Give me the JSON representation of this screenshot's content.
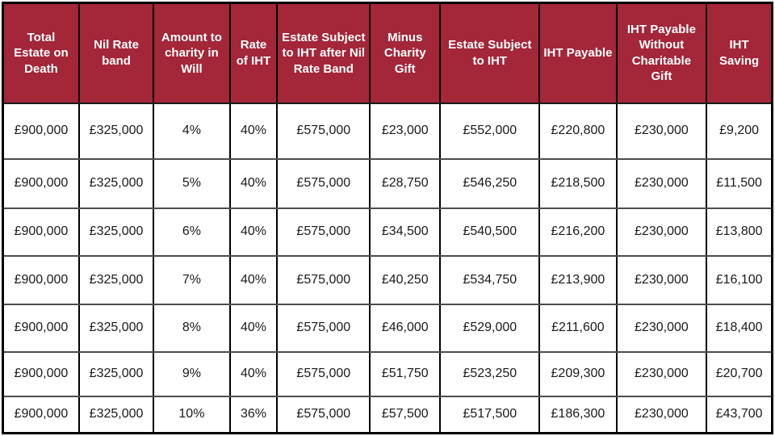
{
  "table": {
    "columns": [
      "Total Estate on Death",
      "Nil Rate band",
      "Amount to charity in Will",
      "Rate of IHT",
      "Estate Subject to IHT after Nil Rate Band",
      "Minus Charity Gift",
      "Estate Subject to IHT",
      "IHT Payable",
      "IHT Payable Without Charitable Gift",
      "IHT Saving"
    ],
    "rows": [
      [
        "£900,000",
        "£325,000",
        "4%",
        "40%",
        "£575,000",
        "£23,000",
        "£552,000",
        "£220,800",
        "£230,000",
        "£9,200"
      ],
      [
        "£900,000",
        "£325,000",
        "5%",
        "40%",
        "£575,000",
        "£28,750",
        "£546,250",
        "£218,500",
        "£230,000",
        "£11,500"
      ],
      [
        "£900,000",
        "£325,000",
        "6%",
        "40%",
        "£575,000",
        "£34,500",
        "£540,500",
        "£216,200",
        "£230,000",
        "£13,800"
      ],
      [
        "£900,000",
        "£325,000",
        "7%",
        "40%",
        "£575,000",
        "£40,250",
        "£534,750",
        "£213,900",
        "£230,000",
        "£16,100"
      ],
      [
        "£900,000",
        "£325,000",
        "8%",
        "40%",
        "£575,000",
        "£46,000",
        "£529,000",
        "£211,600",
        "£230,000",
        "£18,400"
      ],
      [
        "£900,000",
        "£325,000",
        "9%",
        "40%",
        "£575,000",
        "£51,750",
        "£523,250",
        "£209,300",
        "£230,000",
        "£20,700"
      ],
      [
        "£900,000",
        "£325,000",
        "10%",
        "36%",
        "£575,000",
        "£57,500",
        "£517,500",
        "£186,300",
        "£230,000",
        "£43,700"
      ]
    ]
  },
  "colors": {
    "header_bg": "#A32639",
    "header_text": "#FFFFFF",
    "cell_text": "#1A1A1A",
    "outer_border": "#000000",
    "row_separator": "#4D4D4D"
  }
}
